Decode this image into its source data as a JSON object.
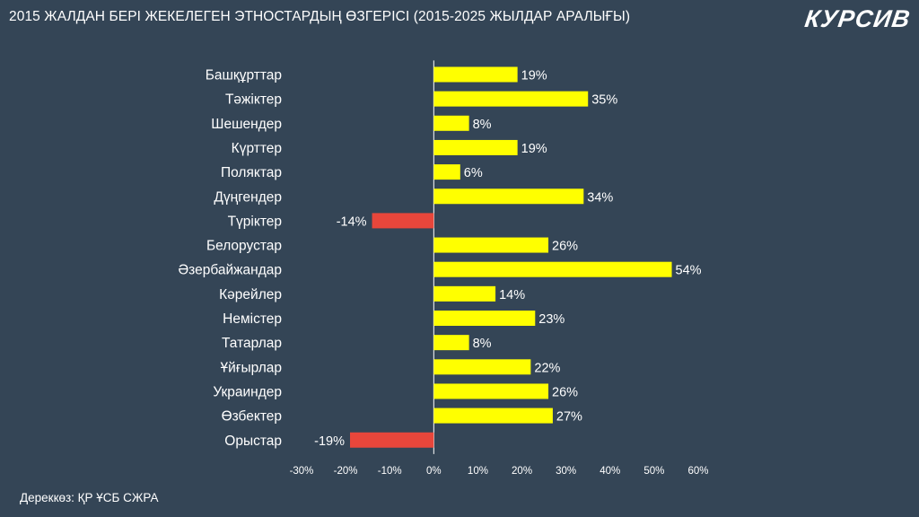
{
  "header": {
    "title": "2015 ЖАЛДАН БЕРІ ЖЕКЕЛЕГЕН ЭТНОСТАРДЫҢ ӨЗГЕРІСІ (2015-2025 ЖЫЛДАР АРАЛЫҒЫ)",
    "logo": "КУРСИВ"
  },
  "footer": {
    "source": "Дереккөз: ҚР ҰСБ СЖРА"
  },
  "colors": {
    "background": "#344556",
    "positive": "#FFFF00",
    "negative": "#E8463B",
    "axis": "#ffffff"
  },
  "chart_data": {
    "type": "bar",
    "orientation": "horizontal",
    "title": "2015 ЖАЛДАН БЕРІ ЖЕКЕЛЕГЕН ЭТНОСТАРДЫҢ ӨЗГЕРІСІ (2015-2025 ЖЫЛДАР АРАЛЫҒЫ)",
    "categories": [
      "Башқұрттар",
      "Тәжіктер",
      "Шешендер",
      "Күрттер",
      "Поляктар",
      "Дүңгендер",
      "Түріктер",
      "Белорустар",
      "Әзербайжандар",
      "Кәрейлер",
      "Немістер",
      "Татарлар",
      "Ұйғырлар",
      "Украиндер",
      "Өзбектер",
      "Орыстар"
    ],
    "values": [
      19,
      35,
      8,
      19,
      6,
      34,
      -14,
      26,
      54,
      14,
      23,
      8,
      22,
      26,
      27,
      -19
    ],
    "data_labels": [
      "19%",
      "35%",
      "8%",
      "19%",
      "6%",
      "34%",
      "-14%",
      "26%",
      "54%",
      "14%",
      "23%",
      "8%",
      "22%",
      "26%",
      "27%",
      "-19%"
    ],
    "xlim": [
      -30,
      60
    ],
    "xticks": [
      -30,
      -20,
      -10,
      0,
      10,
      20,
      30,
      40,
      50,
      60
    ],
    "xtick_labels": [
      "-30%",
      "-20%",
      "-10%",
      "0%",
      "10%",
      "20%",
      "30%",
      "40%",
      "50%",
      "60%"
    ],
    "xlabel": "",
    "ylabel": "",
    "grid": false,
    "legend": "none"
  }
}
